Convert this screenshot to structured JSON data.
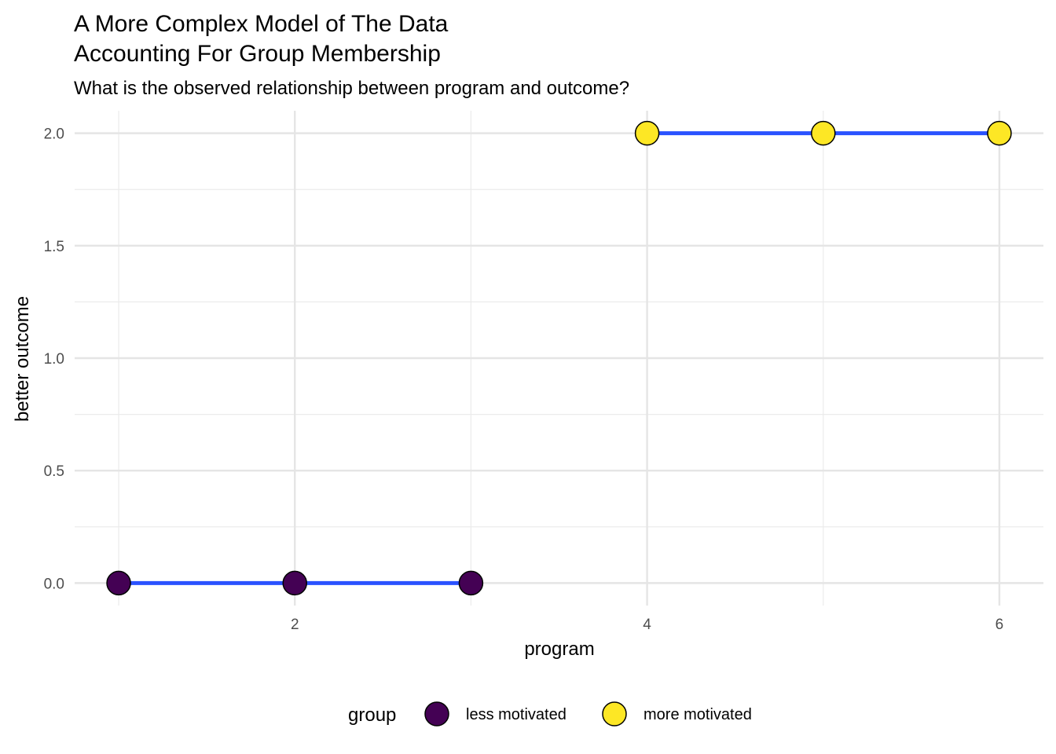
{
  "chart_data": {
    "type": "line",
    "title_lines": [
      "A More Complex Model of The Data",
      "Accounting For Group Membership"
    ],
    "subtitle": "What is the observed relationship between program and outcome?",
    "xlabel": "program",
    "ylabel": "better outcome",
    "xlim": [
      0.75,
      6.25
    ],
    "ylim": [
      -0.1,
      2.1
    ],
    "xticks": [
      2,
      4,
      6
    ],
    "xtick_labels": [
      "2",
      "4",
      "6"
    ],
    "yticks": [
      0,
      0.5,
      1,
      1.5,
      2
    ],
    "ytick_labels": [
      "0.0",
      "0.5",
      "1.0",
      "1.5",
      "2.0"
    ],
    "grid": true,
    "line_color": "#2A52FF",
    "legend": {
      "title": "group",
      "position": "bottom"
    },
    "series": [
      {
        "name": "less motivated",
        "color": "#440154",
        "x": [
          1,
          2,
          3
        ],
        "y": [
          0,
          0,
          0
        ]
      },
      {
        "name": "more motivated",
        "color": "#FDE725",
        "x": [
          4,
          5,
          6
        ],
        "y": [
          2,
          2,
          2
        ]
      }
    ]
  }
}
